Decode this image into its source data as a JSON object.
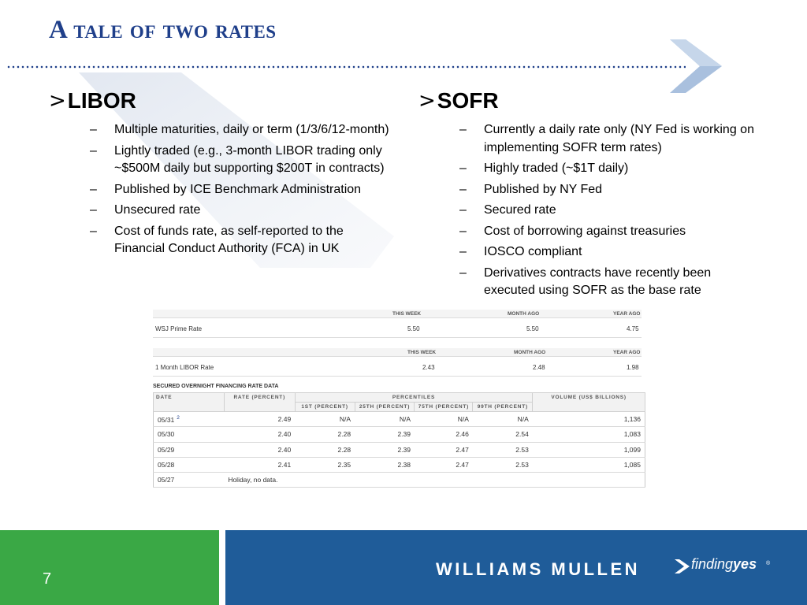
{
  "slide": {
    "title": "A tale of two rates",
    "page_number": "7"
  },
  "libor": {
    "marker": ">",
    "heading": "LIBOR",
    "bullets": [
      "Multiple maturities, daily or term (1/3/6/12-month)",
      "Lightly traded (e.g., 3-month LIBOR trading only ~$500M daily but supporting $200T in contracts)",
      "Published by ICE Benchmark Administration",
      "Unsecured rate",
      "Cost of funds rate, as self-reported to the Financial Conduct Authority (FCA) in UK"
    ]
  },
  "sofr": {
    "marker": ">",
    "heading": "SOFR",
    "bullets": [
      "Currently a daily rate only (NY Fed is working on implementing SOFR term rates)",
      "Highly traded (~$1T daily)",
      "Published by NY Fed",
      "Secured rate",
      "Cost of borrowing against treasuries",
      "IOSCO compliant",
      "Derivatives contracts have recently been executed using SOFR as the base rate"
    ]
  },
  "bullet_dash": "–",
  "prime_table": {
    "headers": {
      "this_week": "THIS WEEK",
      "month_ago": "MONTH AGO",
      "year_ago": "YEAR AGO"
    },
    "label": "WSJ Prime Rate",
    "this_week": "5.50",
    "month_ago": "5.50",
    "year_ago": "4.75"
  },
  "libor_table": {
    "headers": {
      "this_week": "THIS WEEK",
      "month_ago": "MONTH AGO",
      "year_ago": "YEAR AGO"
    },
    "label": "1 Month LIBOR Rate",
    "this_week": "2.43",
    "month_ago": "2.48",
    "year_ago": "1.98"
  },
  "sofr_table": {
    "title": "SECURED OVERNIGHT FINANCING RATE DATA",
    "headers": {
      "date": "DATE",
      "rate": "RATE (PERCENT)",
      "percentiles": "PERCENTILES",
      "volume": "VOLUME (US$ BILLIONS)",
      "p1": "1ST (PERCENT)",
      "p25": "25TH (PERCENT)",
      "p75": "75TH (PERCENT)",
      "p99": "99TH (PERCENT)"
    },
    "rows": [
      {
        "date": "05/31",
        "sup": "2",
        "rate": "2.49",
        "p1": "N/A",
        "p25": "N/A",
        "p75": "N/A",
        "p99": "N/A",
        "volume": "1,136"
      },
      {
        "date": "05/30",
        "rate": "2.40",
        "p1": "2.28",
        "p25": "2.39",
        "p75": "2.46",
        "p99": "2.54",
        "volume": "1,083"
      },
      {
        "date": "05/29",
        "rate": "2.40",
        "p1": "2.28",
        "p25": "2.39",
        "p75": "2.47",
        "p99": "2.53",
        "volume": "1,099"
      },
      {
        "date": "05/28",
        "rate": "2.41",
        "p1": "2.35",
        "p25": "2.38",
        "p75": "2.47",
        "p99": "2.53",
        "volume": "1,085"
      }
    ],
    "holiday_row": {
      "date": "05/27",
      "note": "Holiday, no data."
    }
  },
  "footer": {
    "brand": "WILLIAMS MULLEN",
    "tagline_prefix": "finding",
    "tagline_suffix": "yes",
    "registered": "®"
  },
  "colors": {
    "title_blue": "#1f3f8a",
    "footer_green": "#3aa845",
    "footer_blue": "#1f5c99"
  }
}
